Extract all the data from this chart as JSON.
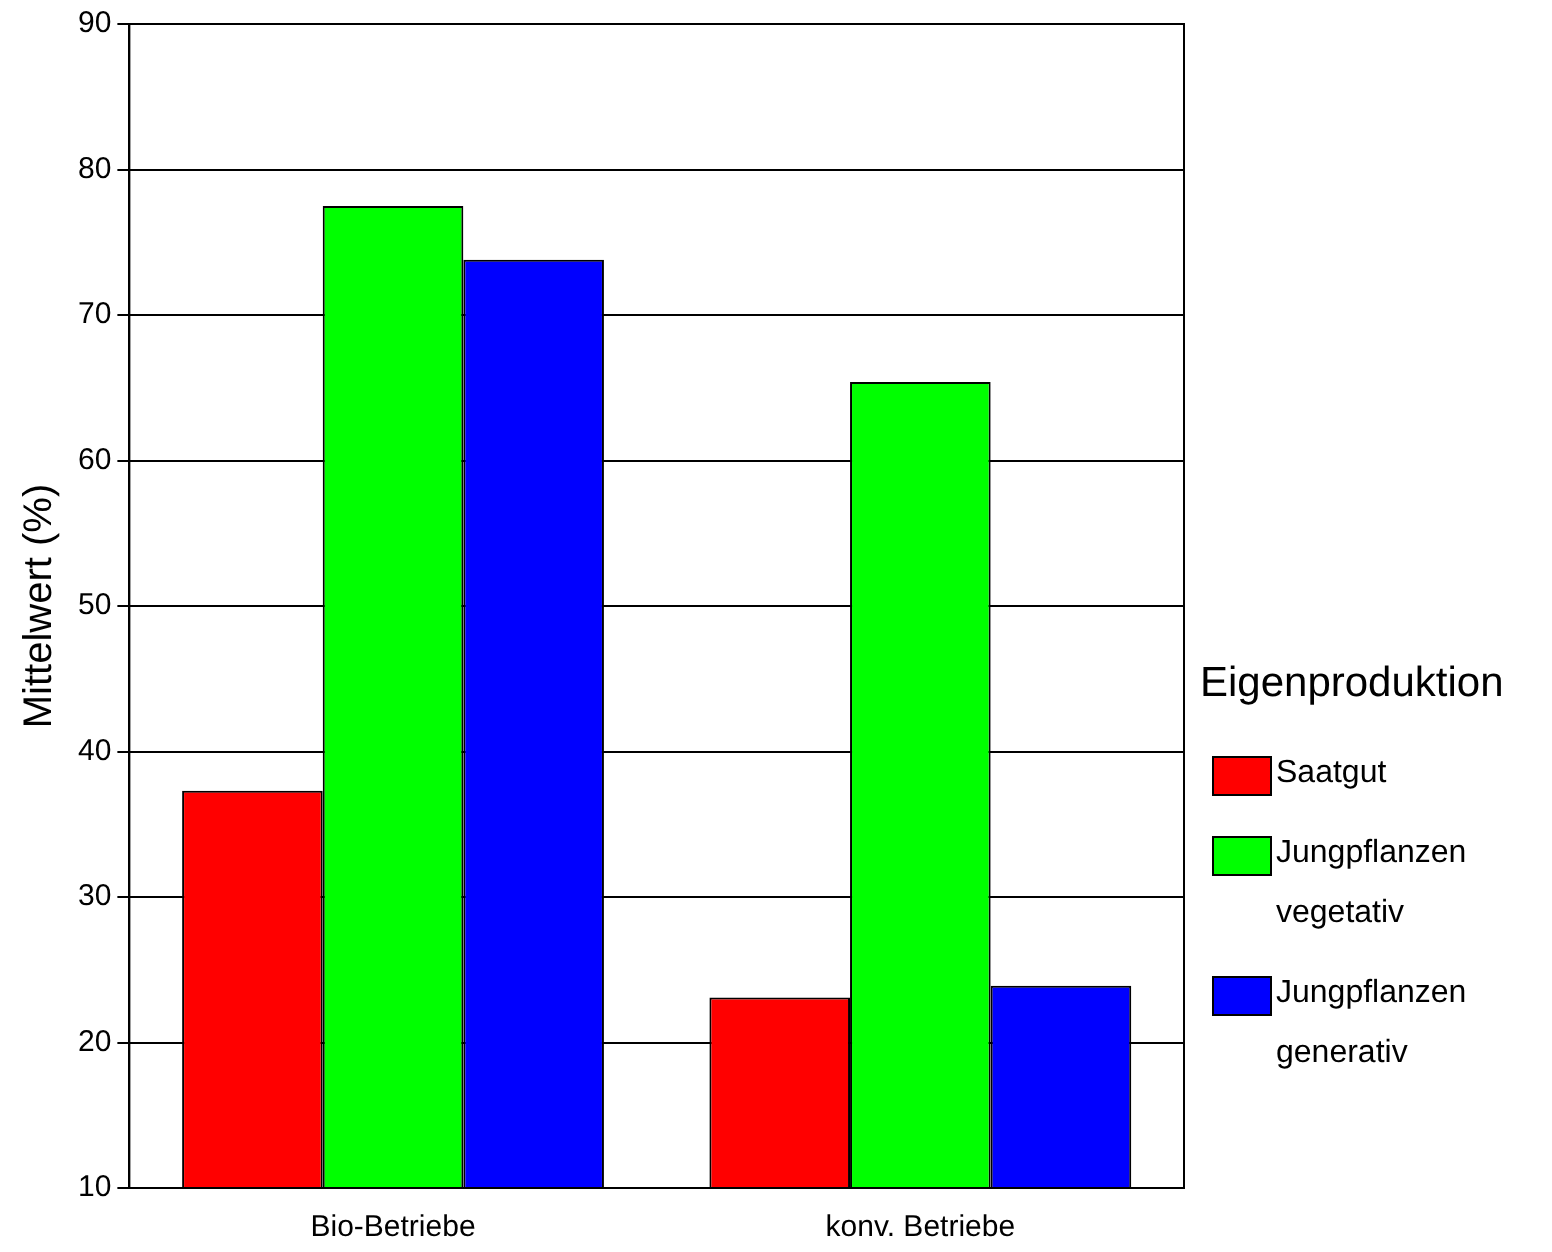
{
  "chart_data": {
    "type": "bar",
    "categories": [
      "Bio-Betriebe",
      "konv. Betriebe"
    ],
    "series": [
      {
        "name": "Saatgut",
        "color": "#ff0000",
        "values": [
          37.3,
          23.1
        ]
      },
      {
        "name": "Jungpflanzen vegetativ",
        "color": "#00ff00",
        "values": [
          77.5,
          65.4
        ]
      },
      {
        "name": "Jungpflanzen generativ",
        "color": "#0000ff",
        "values": [
          73.8,
          23.9
        ]
      }
    ],
    "ylabel": "Mittelwert (%)",
    "legend_title": "Eigenproduktion",
    "legend": "right",
    "ylim": [
      10,
      90
    ],
    "yticks": [
      10,
      20,
      30,
      40,
      50,
      60,
      70,
      80,
      90
    ],
    "grid": "y"
  }
}
